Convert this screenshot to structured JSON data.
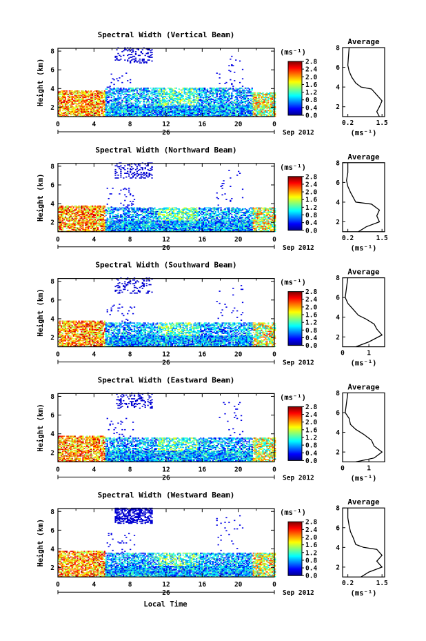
{
  "figure": {
    "xlabel": "Local Time",
    "date_label": "Sep 2012",
    "day_label": "26"
  },
  "chart_data": [
    {
      "type": "heatmap",
      "title": "Spectral Width (Vertical Beam)",
      "ylabel": "Height (km)",
      "x_ticks": [
        "0",
        "4",
        "8",
        "12",
        "16",
        "20",
        "0"
      ],
      "y_ticks": [
        "2",
        "4",
        "6",
        "8"
      ],
      "xlim": [
        0,
        24
      ],
      "ylim": [
        1,
        8.3
      ],
      "colorbar": {
        "unit": "(ms⁻¹)",
        "ticks": [
          "2.8",
          "2.4",
          "2.0",
          "1.6",
          "1.2",
          "0.8",
          "0.4",
          "0.0"
        ],
        "range": [
          0,
          2.8
        ]
      },
      "average_profile": {
        "title": "Average",
        "xlabel": "(ms⁻¹)",
        "x_ticks": [
          "0.2",
          "1.5"
        ],
        "xlim": [
          0,
          1.6
        ],
        "y_ticks": [
          "2",
          "4",
          "6",
          "8"
        ],
        "ylim": [
          1,
          8
        ],
        "points": [
          [
            1.4,
            1.0
          ],
          [
            1.3,
            1.5
          ],
          [
            1.4,
            2.0
          ],
          [
            1.5,
            2.6
          ],
          [
            1.3,
            3.2
          ],
          [
            1.1,
            3.8
          ],
          [
            0.7,
            4.0
          ],
          [
            0.5,
            4.4
          ],
          [
            0.35,
            5.0
          ],
          [
            0.25,
            5.6
          ],
          [
            0.2,
            6.2
          ],
          [
            0.22,
            7.0
          ],
          [
            0.25,
            8.0
          ]
        ]
      }
    },
    {
      "type": "heatmap",
      "title": "Spectral Width (Northward Beam)",
      "ylabel": "Height (km)",
      "x_ticks": [
        "0",
        "4",
        "8",
        "12",
        "16",
        "20",
        "0"
      ],
      "y_ticks": [
        "2",
        "4",
        "6",
        "8"
      ],
      "xlim": [
        0,
        24
      ],
      "ylim": [
        1,
        8.3
      ],
      "colorbar": {
        "unit": "(ms⁻¹)",
        "ticks": [
          "2.8",
          "2.4",
          "2.0",
          "1.6",
          "1.2",
          "0.8",
          "0.4",
          "0.0"
        ],
        "range": [
          0,
          2.8
        ]
      },
      "average_profile": {
        "title": "Average",
        "xlabel": "(ms⁻¹)",
        "x_ticks": [
          "0.2",
          "1.5"
        ],
        "xlim": [
          0,
          1.6
        ],
        "y_ticks": [
          "2",
          "4",
          "6",
          "8"
        ],
        "ylim": [
          1,
          8
        ],
        "points": [
          [
            0.6,
            1.0
          ],
          [
            0.9,
            1.5
          ],
          [
            1.4,
            2.0
          ],
          [
            1.3,
            2.6
          ],
          [
            1.4,
            3.2
          ],
          [
            1.1,
            3.8
          ],
          [
            0.5,
            4.0
          ],
          [
            0.4,
            4.5
          ],
          [
            0.3,
            5.0
          ],
          [
            0.2,
            5.6
          ],
          [
            0.15,
            6.2
          ],
          [
            0.2,
            7.0
          ],
          [
            0.2,
            8.0
          ]
        ]
      }
    },
    {
      "type": "heatmap",
      "title": "Spectral Width (Southward Beam)",
      "ylabel": "Height (km)",
      "x_ticks": [
        "0",
        "4",
        "8",
        "12",
        "16",
        "20",
        "0"
      ],
      "y_ticks": [
        "2",
        "4",
        "6",
        "8"
      ],
      "xlim": [
        0,
        24
      ],
      "ylim": [
        1,
        8.3
      ],
      "colorbar": {
        "unit": "(ms⁻¹)",
        "ticks": [
          "2.8",
          "2.4",
          "2.0",
          "1.6",
          "1.2",
          "0.8",
          "0.4",
          "0.0"
        ],
        "range": [
          0,
          2.8
        ]
      },
      "average_profile": {
        "title": "Average",
        "xlabel": "(ms⁻¹)",
        "x_ticks": [
          "0",
          "1"
        ],
        "xlim": [
          0,
          1.6
        ],
        "y_ticks": [
          "2",
          "4",
          "6",
          "8"
        ],
        "ylim": [
          1,
          8
        ],
        "points": [
          [
            0.5,
            1.0
          ],
          [
            1.0,
            1.5
          ],
          [
            1.5,
            2.2
          ],
          [
            1.3,
            2.8
          ],
          [
            1.2,
            3.3
          ],
          [
            0.9,
            3.8
          ],
          [
            0.6,
            4.2
          ],
          [
            0.4,
            4.8
          ],
          [
            0.2,
            5.4
          ],
          [
            0.1,
            6.0
          ],
          [
            0.15,
            7.0
          ],
          [
            0.2,
            8.0
          ]
        ]
      }
    },
    {
      "type": "heatmap",
      "title": "Spectral Width (Eastward Beam)",
      "ylabel": "Height (km)",
      "x_ticks": [
        "0",
        "4",
        "8",
        "12",
        "16",
        "20",
        "0"
      ],
      "y_ticks": [
        "2",
        "4",
        "6",
        "8"
      ],
      "xlim": [
        0,
        24
      ],
      "ylim": [
        1,
        8.3
      ],
      "colorbar": {
        "unit": "(ms⁻¹)",
        "ticks": [
          "2.8",
          "2.4",
          "2.0",
          "1.6",
          "1.2",
          "0.8",
          "0.4",
          "0.0"
        ],
        "range": [
          0,
          2.8
        ]
      },
      "average_profile": {
        "title": "Average",
        "xlabel": "(ms⁻¹)",
        "x_ticks": [
          "0",
          "1"
        ],
        "xlim": [
          0,
          1.6
        ],
        "y_ticks": [
          "2",
          "4",
          "6",
          "8"
        ],
        "ylim": [
          1,
          8
        ],
        "points": [
          [
            0.5,
            1.0
          ],
          [
            1.2,
            1.4
          ],
          [
            1.5,
            2.0
          ],
          [
            1.2,
            2.6
          ],
          [
            1.1,
            3.2
          ],
          [
            0.8,
            3.8
          ],
          [
            0.5,
            4.3
          ],
          [
            0.3,
            4.8
          ],
          [
            0.25,
            5.4
          ],
          [
            0.1,
            6.0
          ],
          [
            0.15,
            7.0
          ],
          [
            0.2,
            8.0
          ]
        ]
      }
    },
    {
      "type": "heatmap",
      "title": "Spectral Width (Westward Beam)",
      "ylabel": "Height (km)",
      "x_ticks": [
        "0",
        "4",
        "8",
        "12",
        "16",
        "20",
        "0"
      ],
      "y_ticks": [
        "2",
        "4",
        "6",
        "8"
      ],
      "xlim": [
        0,
        24
      ],
      "ylim": [
        1,
        8.3
      ],
      "colorbar": {
        "unit": "(ms⁻¹)",
        "ticks": [
          "2.8",
          "2.4",
          "2.0",
          "1.6",
          "1.2",
          "0.8",
          "0.4",
          "0.0"
        ],
        "range": [
          0,
          2.8
        ]
      },
      "average_profile": {
        "title": "Average",
        "xlabel": "(ms⁻¹)",
        "x_ticks": [
          "0.2",
          "1.5"
        ],
        "xlim": [
          0,
          1.6
        ],
        "y_ticks": [
          "2",
          "4",
          "6",
          "8"
        ],
        "ylim": [
          1,
          8
        ],
        "points": [
          [
            0.7,
            1.0
          ],
          [
            1.0,
            1.5
          ],
          [
            1.5,
            2.0
          ],
          [
            1.3,
            2.6
          ],
          [
            1.5,
            3.2
          ],
          [
            1.3,
            3.8
          ],
          [
            0.8,
            4.0
          ],
          [
            0.5,
            4.3
          ],
          [
            0.4,
            5.0
          ],
          [
            0.3,
            5.6
          ],
          [
            0.25,
            6.2
          ],
          [
            0.2,
            7.0
          ],
          [
            0.2,
            8.0
          ]
        ]
      }
    }
  ]
}
